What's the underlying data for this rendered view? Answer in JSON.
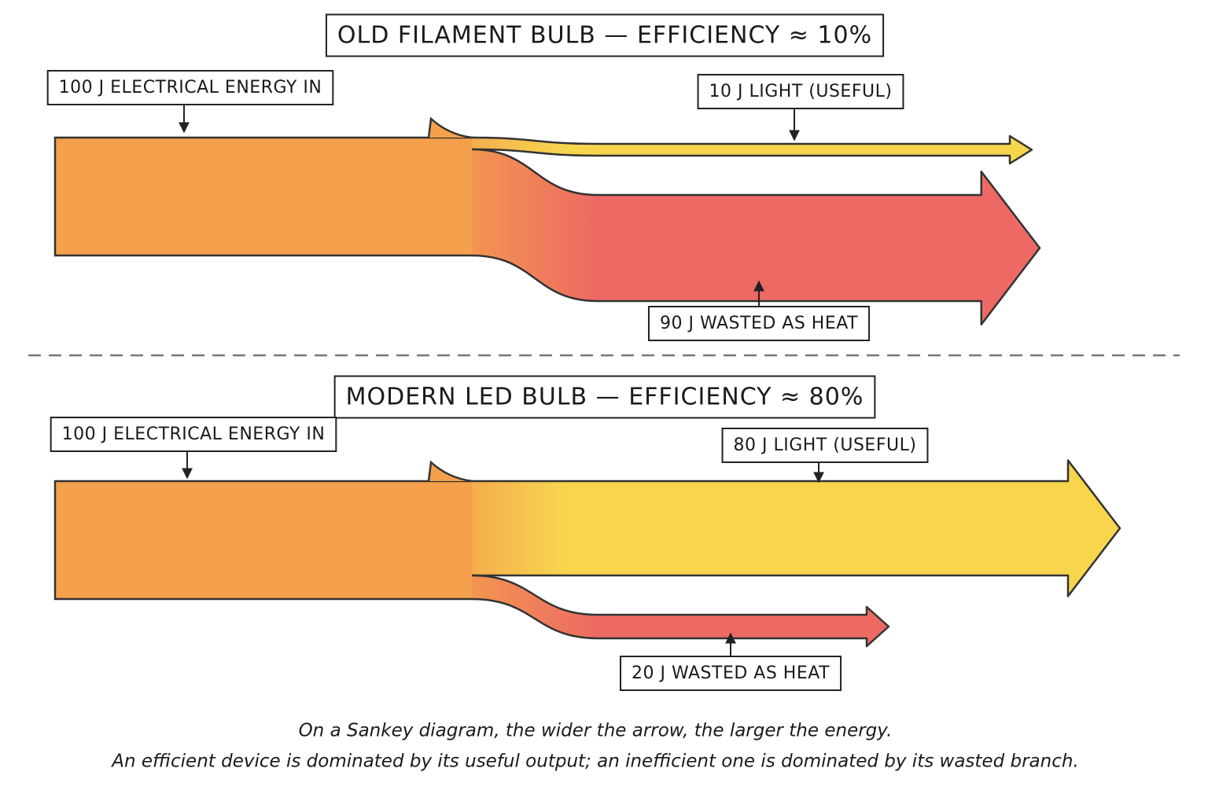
{
  "panels": [
    {
      "title": "OLD FILAMENT BULB — EFFICIENCY ≈ 10%",
      "input": {
        "value": 100,
        "label": "100 J ELECTRICAL ENERGY IN"
      },
      "useful": {
        "value": 10,
        "label": "10 J LIGHT (USEFUL)"
      },
      "waste": {
        "value": 90,
        "label": "90 J WASTED AS HEAT"
      }
    },
    {
      "title": "MODERN LED BULB — EFFICIENCY ≈ 80%",
      "input": {
        "value": 100,
        "label": "100 J ELECTRICAL ENERGY IN"
      },
      "useful": {
        "value": 80,
        "label": "80 J LIGHT (USEFUL)"
      },
      "waste": {
        "value": 20,
        "label": "20 J WASTED AS HEAT"
      }
    }
  ],
  "caption": [
    "On a Sankey diagram, the wider the arrow, the larger the energy.",
    "An efficient device is dominated by its useful output; an inefficient one is dominated by its wasted branch."
  ]
}
